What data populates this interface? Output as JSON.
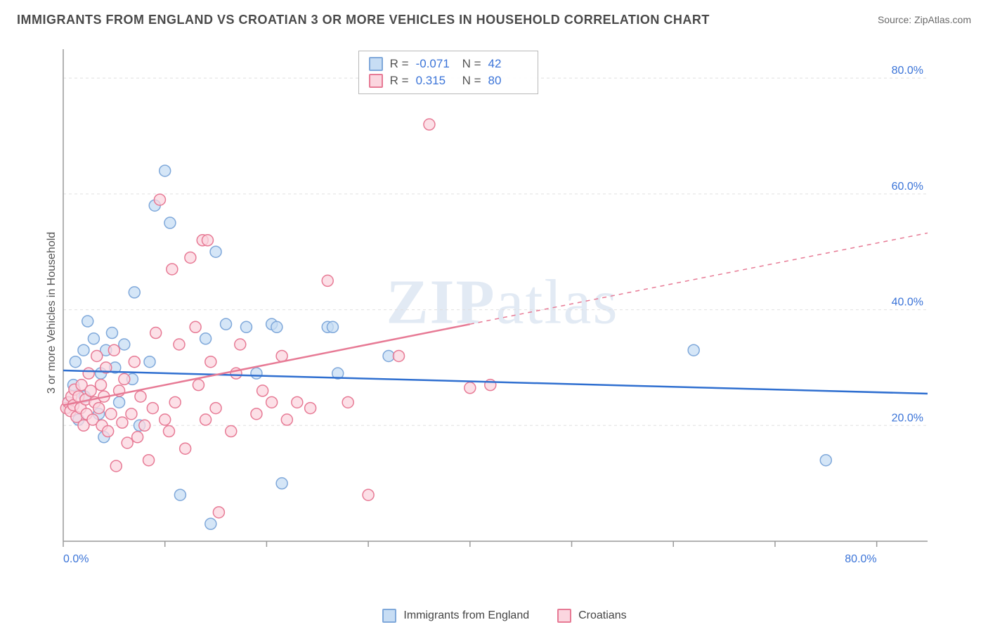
{
  "title": "IMMIGRANTS FROM ENGLAND VS CROATIAN 3 OR MORE VEHICLES IN HOUSEHOLD CORRELATION CHART",
  "source": "Source: ZipAtlas.com",
  "ylabel": "3 or more Vehicles in Household",
  "watermark_a": "ZIP",
  "watermark_b": "atlas",
  "chart": {
    "type": "scatter",
    "xlim": [
      0,
      85
    ],
    "ylim": [
      0,
      85
    ],
    "x_tick_labels": [
      {
        "v": 0,
        "label": "0.0%"
      },
      {
        "v": 80,
        "label": "80.0%"
      }
    ],
    "y_tick_labels": [
      {
        "v": 20,
        "label": "20.0%"
      },
      {
        "v": 40,
        "label": "40.0%"
      },
      {
        "v": 60,
        "label": "60.0%"
      },
      {
        "v": 80,
        "label": "80.0%"
      }
    ],
    "x_minor_ticks": [
      10,
      20,
      30,
      40,
      50,
      60,
      70
    ],
    "grid_color": "#e0e0e0",
    "axis_color": "#9a9a9a",
    "background_color": "#ffffff",
    "marker_radius": 8,
    "marker_stroke_width": 1.5,
    "line_width": 2.5,
    "series": [
      {
        "id": "england",
        "label": "Immigrants from England",
        "fill": "#c7ddf4",
        "stroke": "#7fa8da",
        "r_value": "-0.071",
        "n_value": "42",
        "regression": {
          "x1": 0,
          "y1": 29.5,
          "x2": 85,
          "y2": 25.5
        },
        "points": [
          [
            0.5,
            24
          ],
          [
            1,
            27
          ],
          [
            1.2,
            31
          ],
          [
            1.5,
            21
          ],
          [
            2,
            33
          ],
          [
            2.1,
            25
          ],
          [
            2.4,
            38
          ],
          [
            3,
            35
          ],
          [
            3.5,
            22
          ],
          [
            3.7,
            29
          ],
          [
            4,
            18
          ],
          [
            4.2,
            33
          ],
          [
            4.8,
            36
          ],
          [
            5.1,
            30
          ],
          [
            5.5,
            24
          ],
          [
            6,
            34
          ],
          [
            6.8,
            28
          ],
          [
            7,
            43
          ],
          [
            7.5,
            20
          ],
          [
            8.5,
            31
          ],
          [
            9,
            58
          ],
          [
            10,
            64
          ],
          [
            10.5,
            55
          ],
          [
            11.5,
            8
          ],
          [
            14,
            35
          ],
          [
            14.5,
            3
          ],
          [
            15,
            50
          ],
          [
            16,
            37.5
          ],
          [
            18,
            37
          ],
          [
            19,
            29
          ],
          [
            20.5,
            37.5
          ],
          [
            21,
            37
          ],
          [
            21.5,
            10
          ],
          [
            26,
            37
          ],
          [
            26.5,
            37
          ],
          [
            27,
            29
          ],
          [
            32,
            32
          ],
          [
            62,
            33
          ],
          [
            75,
            14
          ]
        ]
      },
      {
        "id": "croatians",
        "label": "Croatians",
        "fill": "#fbd6df",
        "stroke": "#e77a95",
        "r_value": "0.315",
        "n_value": "80",
        "regression": {
          "x1": 0,
          "y1": 23.5,
          "x2": 70,
          "y2": 48
        },
        "regression_dash_after_x": 40,
        "points": [
          [
            0.3,
            23
          ],
          [
            0.5,
            24
          ],
          [
            0.7,
            22.5
          ],
          [
            0.8,
            25
          ],
          [
            1,
            23.5
          ],
          [
            1.1,
            26.2
          ],
          [
            1.3,
            21.5
          ],
          [
            1.5,
            25
          ],
          [
            1.7,
            23
          ],
          [
            1.8,
            27
          ],
          [
            2,
            20
          ],
          [
            2.2,
            24.5
          ],
          [
            2.3,
            22
          ],
          [
            2.5,
            29
          ],
          [
            2.7,
            26
          ],
          [
            2.9,
            21
          ],
          [
            3.1,
            24
          ],
          [
            3.3,
            32
          ],
          [
            3.5,
            23
          ],
          [
            3.7,
            27
          ],
          [
            3.8,
            20
          ],
          [
            4,
            25
          ],
          [
            4.2,
            30
          ],
          [
            4.4,
            19
          ],
          [
            4.7,
            22
          ],
          [
            5,
            33
          ],
          [
            5.2,
            13
          ],
          [
            5.5,
            26
          ],
          [
            5.8,
            20.5
          ],
          [
            6,
            28
          ],
          [
            6.3,
            17
          ],
          [
            6.7,
            22
          ],
          [
            7,
            31
          ],
          [
            7.3,
            18
          ],
          [
            7.6,
            25
          ],
          [
            8,
            20
          ],
          [
            8.4,
            14
          ],
          [
            8.8,
            23
          ],
          [
            9.1,
            36
          ],
          [
            9.5,
            59
          ],
          [
            10,
            21
          ],
          [
            10.4,
            19
          ],
          [
            10.7,
            47
          ],
          [
            11,
            24
          ],
          [
            11.4,
            34
          ],
          [
            12,
            16
          ],
          [
            12.5,
            49
          ],
          [
            13,
            37
          ],
          [
            13.3,
            27
          ],
          [
            13.7,
            52
          ],
          [
            14,
            21
          ],
          [
            14.2,
            52
          ],
          [
            14.5,
            31
          ],
          [
            15,
            23
          ],
          [
            15.3,
            5
          ],
          [
            16.5,
            19
          ],
          [
            17,
            29
          ],
          [
            17.4,
            34
          ],
          [
            19,
            22
          ],
          [
            19.6,
            26
          ],
          [
            20.5,
            24
          ],
          [
            21.5,
            32
          ],
          [
            22,
            21
          ],
          [
            23,
            24
          ],
          [
            24.3,
            23
          ],
          [
            26,
            45
          ],
          [
            28,
            24
          ],
          [
            30,
            8
          ],
          [
            33,
            32
          ],
          [
            36,
            72
          ],
          [
            40,
            26.5
          ],
          [
            42,
            27
          ]
        ]
      }
    ]
  },
  "legend_bottom": {
    "items": [
      {
        "label": "Immigrants from England",
        "fill": "#c7ddf4",
        "stroke": "#7fa8da"
      },
      {
        "label": "Croatians",
        "fill": "#fbd6df",
        "stroke": "#e77a95"
      }
    ]
  },
  "stat_box": {
    "rows": [
      {
        "fill": "#c7ddf4",
        "stroke": "#7fa8da",
        "r": "-0.071",
        "n": "42"
      },
      {
        "fill": "#fbd6df",
        "stroke": "#e77a95",
        "r": "0.315",
        "n": "80"
      }
    ],
    "r_label": "R =",
    "n_label": "N ="
  }
}
